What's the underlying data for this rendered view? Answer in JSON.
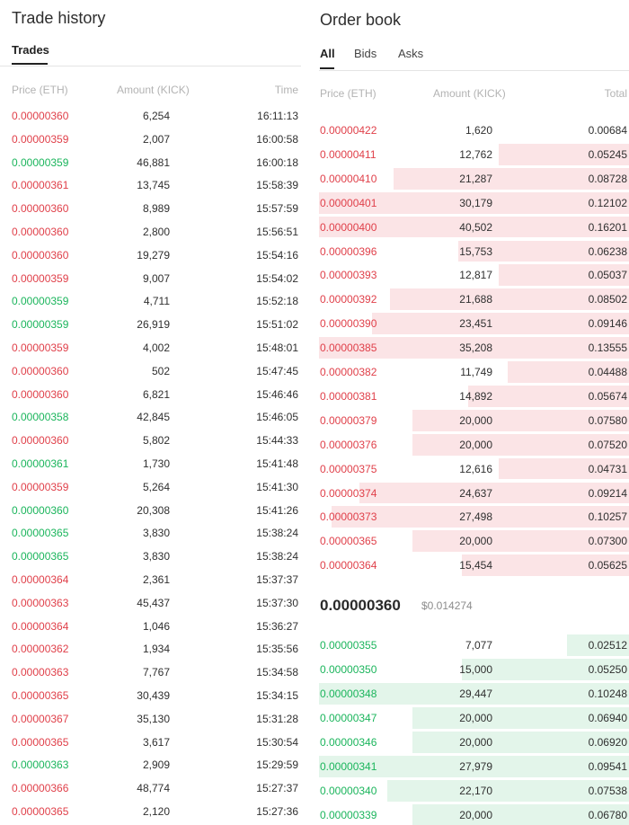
{
  "trade_history": {
    "title": "Trade history",
    "tab_label": "Trades",
    "columns": {
      "price": "Price (ETH)",
      "amount": "Amount (KICK)",
      "time": "Time"
    },
    "rows": [
      {
        "price": "0.00000360",
        "amount": "6,254",
        "time": "16:11:13",
        "side": "sell"
      },
      {
        "price": "0.00000359",
        "amount": "2,007",
        "time": "16:00:58",
        "side": "sell"
      },
      {
        "price": "0.00000359",
        "amount": "46,881",
        "time": "16:00:18",
        "side": "buy"
      },
      {
        "price": "0.00000361",
        "amount": "13,745",
        "time": "15:58:39",
        "side": "sell"
      },
      {
        "price": "0.00000360",
        "amount": "8,989",
        "time": "15:57:59",
        "side": "sell"
      },
      {
        "price": "0.00000360",
        "amount": "2,800",
        "time": "15:56:51",
        "side": "sell"
      },
      {
        "price": "0.00000360",
        "amount": "19,279",
        "time": "15:54:16",
        "side": "sell"
      },
      {
        "price": "0.00000359",
        "amount": "9,007",
        "time": "15:54:02",
        "side": "sell"
      },
      {
        "price": "0.00000359",
        "amount": "4,711",
        "time": "15:52:18",
        "side": "buy"
      },
      {
        "price": "0.00000359",
        "amount": "26,919",
        "time": "15:51:02",
        "side": "buy"
      },
      {
        "price": "0.00000359",
        "amount": "4,002",
        "time": "15:48:01",
        "side": "sell"
      },
      {
        "price": "0.00000360",
        "amount": "502",
        "time": "15:47:45",
        "side": "sell"
      },
      {
        "price": "0.00000360",
        "amount": "6,821",
        "time": "15:46:46",
        "side": "sell"
      },
      {
        "price": "0.00000358",
        "amount": "42,845",
        "time": "15:46:05",
        "side": "buy"
      },
      {
        "price": "0.00000360",
        "amount": "5,802",
        "time": "15:44:33",
        "side": "sell"
      },
      {
        "price": "0.00000361",
        "amount": "1,730",
        "time": "15:41:48",
        "side": "buy"
      },
      {
        "price": "0.00000359",
        "amount": "5,264",
        "time": "15:41:30",
        "side": "sell"
      },
      {
        "price": "0.00000360",
        "amount": "20,308",
        "time": "15:41:26",
        "side": "buy"
      },
      {
        "price": "0.00000365",
        "amount": "3,830",
        "time": "15:38:24",
        "side": "buy"
      },
      {
        "price": "0.00000365",
        "amount": "3,830",
        "time": "15:38:24",
        "side": "buy"
      },
      {
        "price": "0.00000364",
        "amount": "2,361",
        "time": "15:37:37",
        "side": "sell"
      },
      {
        "price": "0.00000363",
        "amount": "45,437",
        "time": "15:37:30",
        "side": "sell"
      },
      {
        "price": "0.00000364",
        "amount": "1,046",
        "time": "15:36:27",
        "side": "sell"
      },
      {
        "price": "0.00000362",
        "amount": "1,934",
        "time": "15:35:56",
        "side": "sell"
      },
      {
        "price": "0.00000363",
        "amount": "7,767",
        "time": "15:34:58",
        "side": "sell"
      },
      {
        "price": "0.00000365",
        "amount": "30,439",
        "time": "15:34:15",
        "side": "sell"
      },
      {
        "price": "0.00000367",
        "amount": "35,130",
        "time": "15:31:28",
        "side": "sell"
      },
      {
        "price": "0.00000365",
        "amount": "3,617",
        "time": "15:30:54",
        "side": "sell"
      },
      {
        "price": "0.00000363",
        "amount": "2,909",
        "time": "15:29:59",
        "side": "buy"
      },
      {
        "price": "0.00000366",
        "amount": "48,774",
        "time": "15:27:37",
        "side": "sell"
      },
      {
        "price": "0.00000365",
        "amount": "2,120",
        "time": "15:27:36",
        "side": "sell"
      }
    ]
  },
  "order_book": {
    "title": "Order book",
    "tabs": [
      {
        "label": "All",
        "active": true
      },
      {
        "label": "Bids",
        "active": false
      },
      {
        "label": "Asks",
        "active": false
      }
    ],
    "columns": {
      "price": "Price (ETH)",
      "amount": "Amount (KICK)",
      "total": "Total"
    },
    "asks": [
      {
        "price": "0.00000422",
        "amount": "1,620",
        "total": "0.00684",
        "depth": 0.0
      },
      {
        "price": "0.00000411",
        "amount": "12,762",
        "total": "0.05245",
        "depth": 0.42
      },
      {
        "price": "0.00000410",
        "amount": "21,287",
        "total": "0.08728",
        "depth": 0.76
      },
      {
        "price": "0.00000401",
        "amount": "30,179",
        "total": "0.12102",
        "depth": 1.0
      },
      {
        "price": "0.00000400",
        "amount": "40,502",
        "total": "0.16201",
        "depth": 1.0
      },
      {
        "price": "0.00000396",
        "amount": "15,753",
        "total": "0.06238",
        "depth": 0.55
      },
      {
        "price": "0.00000393",
        "amount": "12,817",
        "total": "0.05037",
        "depth": 0.42
      },
      {
        "price": "0.00000392",
        "amount": "21,688",
        "total": "0.08502",
        "depth": 0.77
      },
      {
        "price": "0.00000390",
        "amount": "23,451",
        "total": "0.09146",
        "depth": 0.83
      },
      {
        "price": "0.00000385",
        "amount": "35,208",
        "total": "0.13555",
        "depth": 1.0
      },
      {
        "price": "0.00000382",
        "amount": "11,749",
        "total": "0.04488",
        "depth": 0.39
      },
      {
        "price": "0.00000381",
        "amount": "14,892",
        "total": "0.05674",
        "depth": 0.52
      },
      {
        "price": "0.00000379",
        "amount": "20,000",
        "total": "0.07580",
        "depth": 0.7
      },
      {
        "price": "0.00000376",
        "amount": "20,000",
        "total": "0.07520",
        "depth": 0.7
      },
      {
        "price": "0.00000375",
        "amount": "12,616",
        "total": "0.04731",
        "depth": 0.42
      },
      {
        "price": "0.00000374",
        "amount": "24,637",
        "total": "0.09214",
        "depth": 0.87
      },
      {
        "price": "0.00000373",
        "amount": "27,498",
        "total": "0.10257",
        "depth": 0.96
      },
      {
        "price": "0.00000365",
        "amount": "20,000",
        "total": "0.07300",
        "depth": 0.7
      },
      {
        "price": "0.00000364",
        "amount": "15,454",
        "total": "0.05625",
        "depth": 0.54
      }
    ],
    "last_price": "0.00000360",
    "last_price_usd": "$0.014274",
    "bids": [
      {
        "price": "0.00000355",
        "amount": "7,077",
        "total": "0.02512",
        "depth": 0.2
      },
      {
        "price": "0.00000350",
        "amount": "15,000",
        "total": "0.05250",
        "depth": 0.54
      },
      {
        "price": "0.00000348",
        "amount": "29,447",
        "total": "0.10248",
        "depth": 1.0
      },
      {
        "price": "0.00000347",
        "amount": "20,000",
        "total": "0.06940",
        "depth": 0.7
      },
      {
        "price": "0.00000346",
        "amount": "20,000",
        "total": "0.06920",
        "depth": 0.7
      },
      {
        "price": "0.00000341",
        "amount": "27,979",
        "total": "0.09541",
        "depth": 1.0
      },
      {
        "price": "0.00000340",
        "amount": "22,170",
        "total": "0.07538",
        "depth": 0.78
      },
      {
        "price": "0.00000339",
        "amount": "20,000",
        "total": "0.06780",
        "depth": 0.7
      }
    ]
  },
  "colors": {
    "sell": "#e0404a",
    "buy": "#1bb55c",
    "sell_bg": "#fbe4e6",
    "buy_bg": "#e3f5ea"
  }
}
